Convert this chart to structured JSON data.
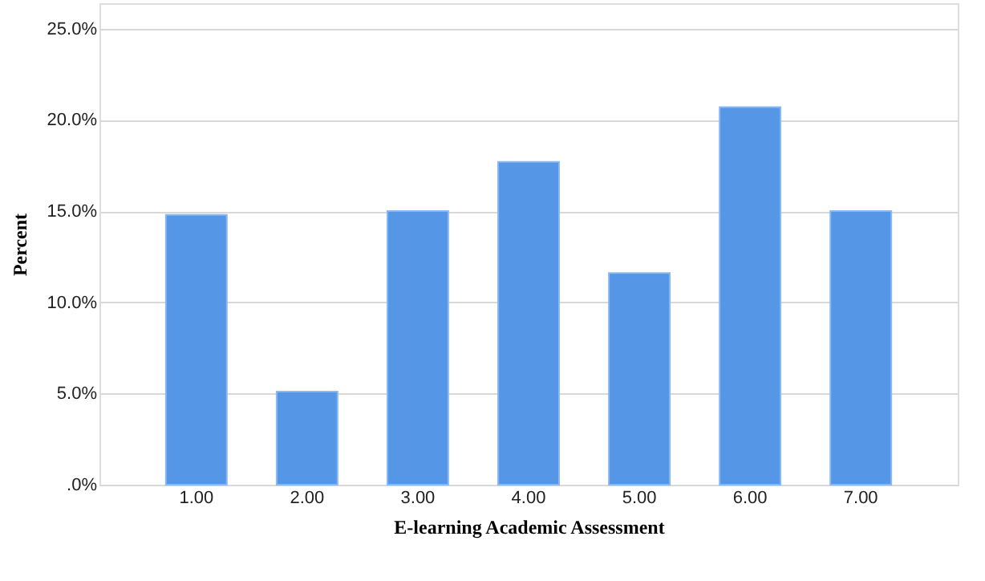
{
  "chart_data": {
    "type": "bar",
    "xlabel": "E-learning Academic Assessment",
    "ylabel": "Percent",
    "categories": [
      "1.00",
      "2.00",
      "3.00",
      "4.00",
      "5.00",
      "6.00",
      "7.00"
    ],
    "values": [
      14.8,
      5.1,
      15.0,
      17.7,
      11.6,
      20.7,
      15.0
    ],
    "color": "#5596e6",
    "ylim": [
      0,
      26.4
    ],
    "yticks": [
      {
        "value": 0,
        "label": ".0%"
      },
      {
        "value": 5,
        "label": "5.0%"
      },
      {
        "value": 10,
        "label": "10.0%"
      },
      {
        "value": 15,
        "label": "15.0%"
      },
      {
        "value": 20,
        "label": "20.0%"
      },
      {
        "value": 25,
        "label": "25.0%"
      }
    ],
    "grid": "y"
  }
}
